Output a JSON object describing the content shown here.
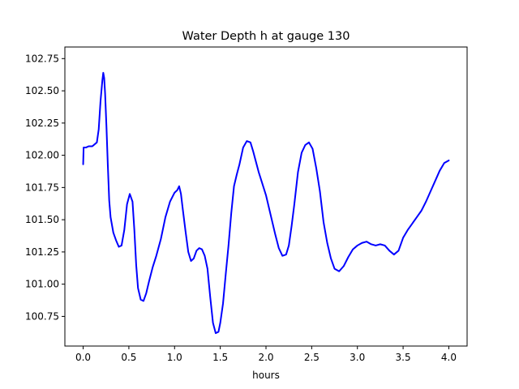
{
  "chart_data": {
    "type": "line",
    "title": "Water Depth h at gauge 130",
    "xlabel": "hours",
    "ylabel": "",
    "xlim": [
      -0.2,
      4.2
    ],
    "ylim": [
      100.52,
      102.84
    ],
    "xticks": [
      0.0,
      0.5,
      1.0,
      1.5,
      2.0,
      2.5,
      3.0,
      3.5,
      4.0
    ],
    "xtick_labels": [
      "0.0",
      "0.5",
      "1.0",
      "1.5",
      "2.0",
      "2.5",
      "3.0",
      "3.5",
      "4.0"
    ],
    "yticks": [
      100.75,
      101.0,
      101.25,
      101.5,
      101.75,
      102.0,
      102.25,
      102.5,
      102.75
    ],
    "ytick_labels": [
      "100.75",
      "101.00",
      "101.25",
      "101.50",
      "101.75",
      "102.00",
      "102.25",
      "102.50",
      "102.75"
    ],
    "grid": false,
    "series": [
      {
        "color": "#0000ff",
        "x": [
          0.0,
          0.005,
          0.03,
          0.06,
          0.1,
          0.15,
          0.17,
          0.19,
          0.21,
          0.22,
          0.23,
          0.24,
          0.255,
          0.27,
          0.285,
          0.3,
          0.33,
          0.36,
          0.39,
          0.42,
          0.45,
          0.48,
          0.51,
          0.54,
          0.56,
          0.58,
          0.6,
          0.63,
          0.66,
          0.69,
          0.72,
          0.76,
          0.8,
          0.85,
          0.9,
          0.95,
          1.0,
          1.03,
          1.05,
          1.07,
          1.09,
          1.12,
          1.15,
          1.18,
          1.21,
          1.24,
          1.27,
          1.3,
          1.33,
          1.36,
          1.39,
          1.42,
          1.45,
          1.48,
          1.5,
          1.53,
          1.56,
          1.59,
          1.62,
          1.65,
          1.68,
          1.71,
          1.75,
          1.79,
          1.83,
          1.86,
          1.89,
          1.92,
          1.96,
          2.0,
          2.04,
          2.07,
          2.1,
          2.14,
          2.18,
          2.22,
          2.25,
          2.28,
          2.31,
          2.35,
          2.39,
          2.43,
          2.47,
          2.51,
          2.55,
          2.59,
          2.63,
          2.67,
          2.71,
          2.75,
          2.8,
          2.85,
          2.9,
          2.95,
          3.0,
          3.05,
          3.1,
          3.15,
          3.2,
          3.25,
          3.3,
          3.35,
          3.4,
          3.45,
          3.5,
          3.55,
          3.6,
          3.65,
          3.7,
          3.75,
          3.8,
          3.85,
          3.9,
          3.95,
          4.0
        ],
        "y": [
          101.93,
          102.06,
          102.06,
          102.07,
          102.07,
          102.1,
          102.2,
          102.42,
          102.58,
          102.64,
          102.6,
          102.48,
          102.22,
          101.92,
          101.65,
          101.52,
          101.4,
          101.34,
          101.29,
          101.3,
          101.42,
          101.62,
          101.7,
          101.64,
          101.42,
          101.15,
          100.97,
          100.88,
          100.87,
          100.93,
          101.02,
          101.13,
          101.22,
          101.35,
          101.52,
          101.64,
          101.71,
          101.73,
          101.76,
          101.7,
          101.58,
          101.41,
          101.25,
          101.18,
          101.2,
          101.26,
          101.28,
          101.27,
          101.22,
          101.12,
          100.9,
          100.7,
          100.62,
          100.63,
          100.7,
          100.85,
          101.08,
          101.3,
          101.55,
          101.76,
          101.85,
          101.93,
          102.06,
          102.11,
          102.1,
          102.03,
          101.95,
          101.87,
          101.78,
          101.69,
          101.57,
          101.48,
          101.39,
          101.28,
          101.22,
          101.23,
          101.3,
          101.45,
          101.62,
          101.87,
          102.02,
          102.08,
          102.1,
          102.05,
          101.9,
          101.72,
          101.48,
          101.32,
          101.2,
          101.12,
          101.1,
          101.14,
          101.21,
          101.27,
          101.3,
          101.32,
          101.33,
          101.31,
          101.3,
          101.31,
          101.3,
          101.26,
          101.23,
          101.26,
          101.36,
          101.42,
          101.47,
          101.52,
          101.57,
          101.64,
          101.72,
          101.8,
          101.88,
          101.94,
          101.96
        ]
      }
    ]
  }
}
